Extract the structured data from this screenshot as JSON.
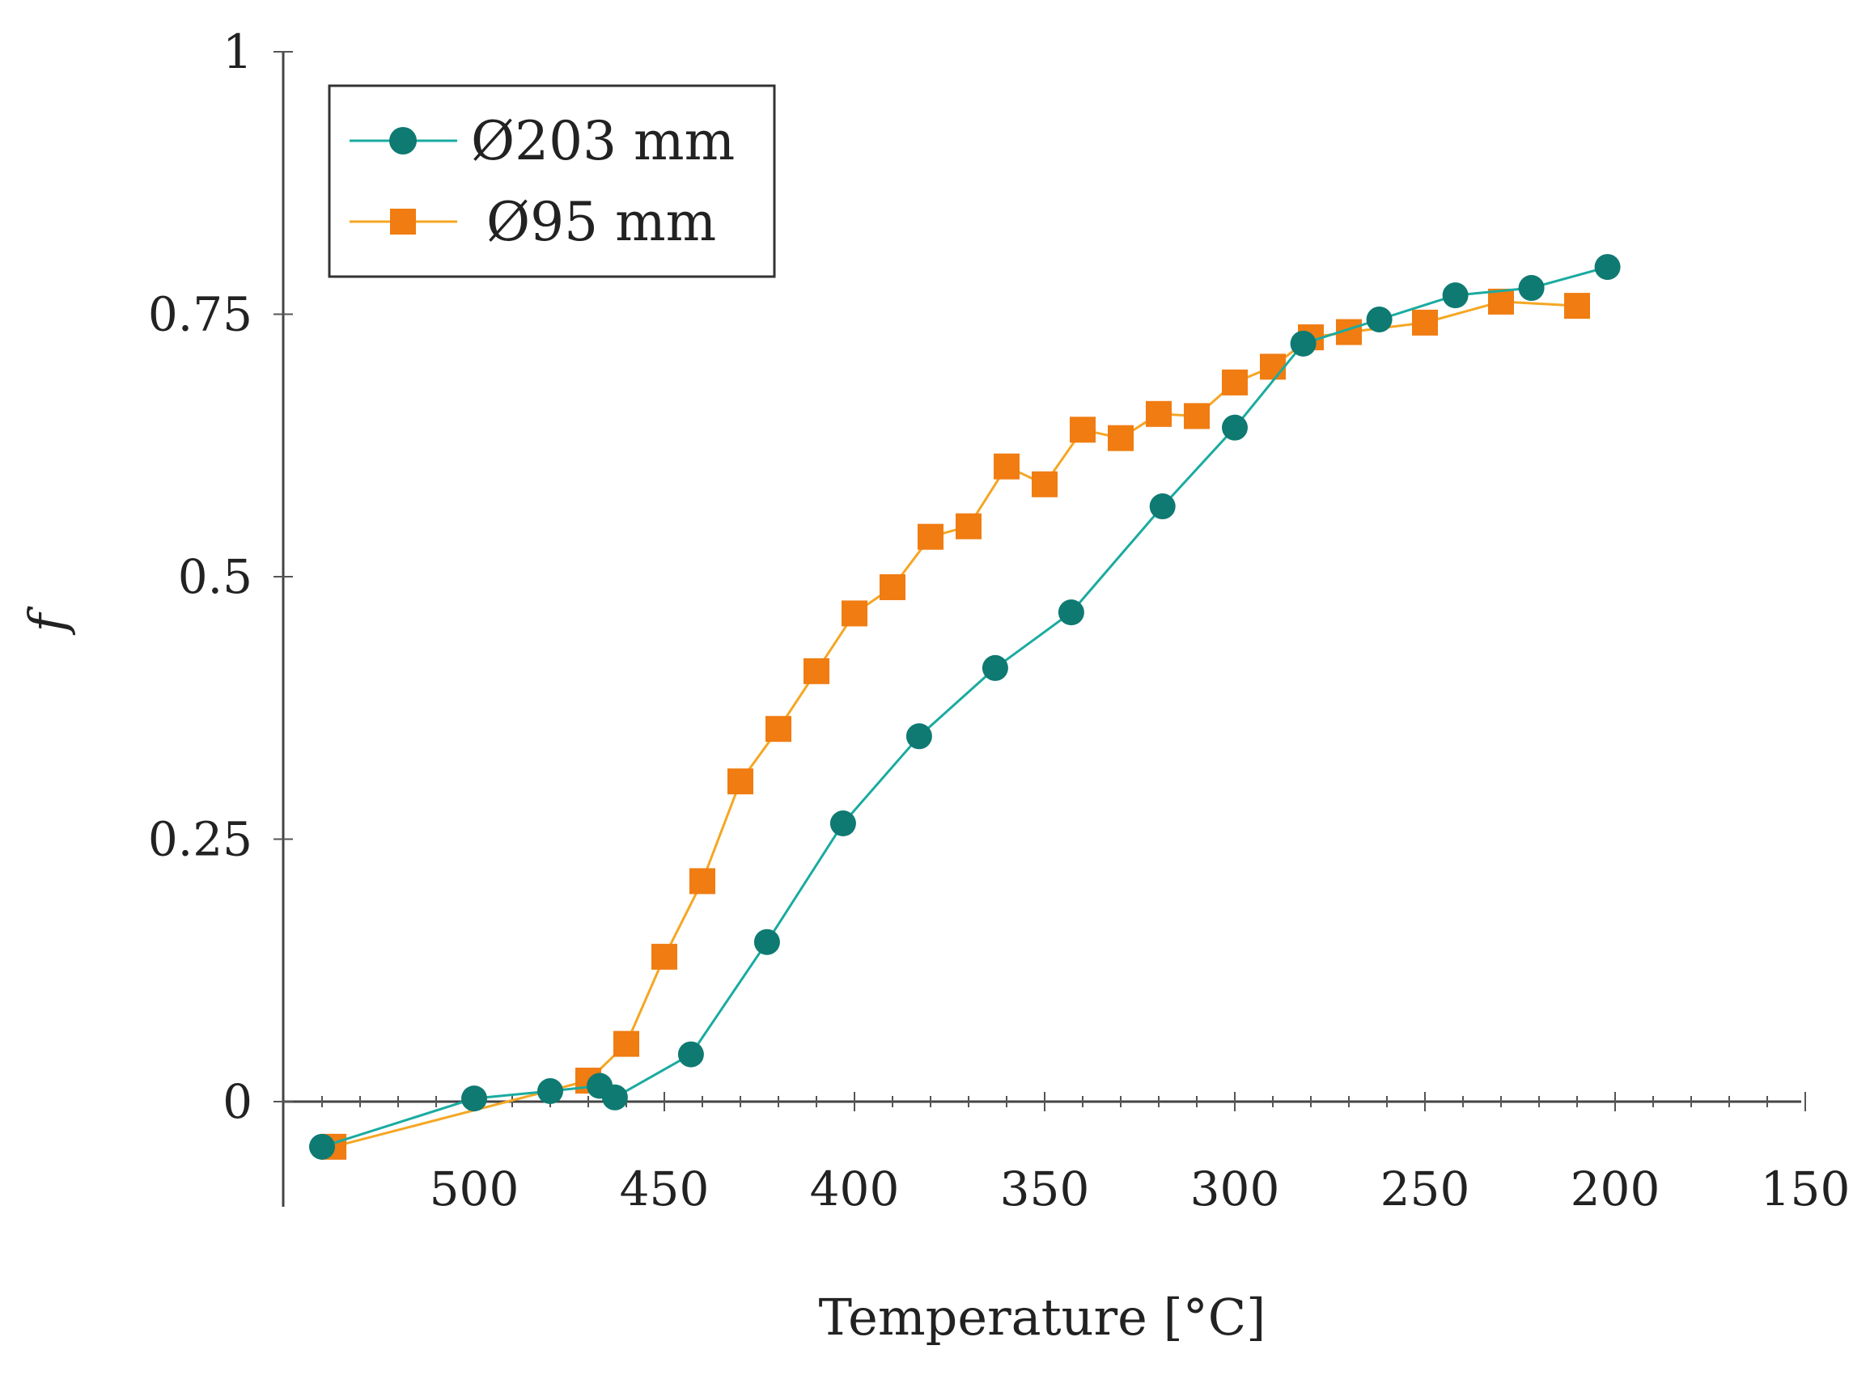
{
  "chart_data": {
    "type": "line",
    "title": "",
    "xlabel": "Temperature [°C]",
    "ylabel": "f",
    "xlim": [
      550,
      150
    ],
    "ylim": [
      -0.1,
      1.0
    ],
    "x_reversed": true,
    "grid": false,
    "legend_position": "top-left",
    "xticks": [
      500,
      450,
      400,
      350,
      300,
      250,
      200,
      150
    ],
    "xtick_labels": [
      "500",
      "450",
      "400",
      "350",
      "300",
      "250",
      "200",
      "150"
    ],
    "yticks": [
      0,
      0.25,
      0.5,
      0.75,
      1
    ],
    "ytick_labels": [
      "0",
      "0.25",
      "0.5",
      "0.75",
      "1"
    ],
    "series": [
      {
        "name": "Ø203 mm",
        "color": "#1aaba0",
        "marker_color": "#0e7a72",
        "marker": "circle",
        "x": [
          540,
          500,
          480,
          467,
          463,
          443,
          423,
          403,
          383,
          363,
          343,
          319,
          300,
          282,
          262,
          242,
          222,
          202
        ],
        "y": [
          -0.043,
          0.003,
          0.01,
          0.015,
          0.004,
          0.045,
          0.152,
          0.265,
          0.348,
          0.413,
          0.466,
          0.567,
          0.642,
          0.722,
          0.745,
          0.768,
          0.775,
          0.795
        ]
      },
      {
        "name": "Ø95 mm",
        "color": "#f5a623",
        "marker_color": "#f07c12",
        "marker": "square",
        "x": [
          537,
          470,
          460,
          450,
          440,
          430,
          420,
          410,
          400,
          390,
          380,
          370,
          360,
          350,
          340,
          330,
          320,
          310,
          300,
          290,
          280,
          270,
          250,
          230,
          210
        ],
        "y": [
          -0.043,
          0.02,
          0.055,
          0.138,
          0.21,
          0.305,
          0.355,
          0.41,
          0.465,
          0.49,
          0.538,
          0.548,
          0.605,
          0.588,
          0.64,
          0.632,
          0.655,
          0.653,
          0.685,
          0.7,
          0.728,
          0.733,
          0.742,
          0.762,
          0.758
        ]
      }
    ]
  }
}
